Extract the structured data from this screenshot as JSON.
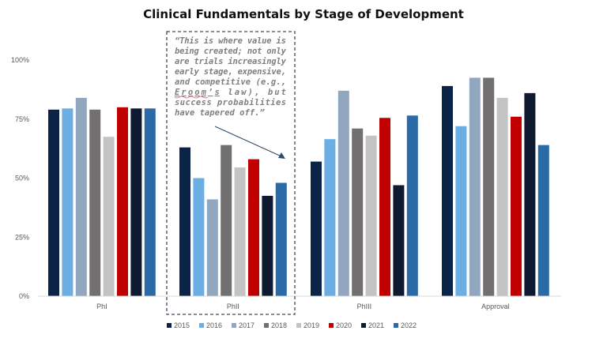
{
  "chart_data": {
    "type": "bar",
    "title": "Clinical Fundamentals by Stage of Development",
    "categories": [
      "PhI",
      "PhII",
      "PhIII",
      "Approval"
    ],
    "y_ticks": [
      "0%",
      "25%",
      "50%",
      "75%",
      "100%"
    ],
    "ylim": [
      0,
      100
    ],
    "grid": false,
    "legend_position": "bottom",
    "series": [
      {
        "name": "2015",
        "color": "#0c2348",
        "values": [
          79,
          63,
          57,
          89
        ]
      },
      {
        "name": "2016",
        "color": "#6aaee4",
        "values": [
          79.5,
          50,
          66.5,
          72
        ]
      },
      {
        "name": "2017",
        "color": "#91a7bf",
        "values": [
          84,
          41,
          87,
          92.5
        ]
      },
      {
        "name": "2018",
        "color": "#716f70",
        "values": [
          79,
          64,
          71,
          92.5
        ]
      },
      {
        "name": "2019",
        "color": "#c3c3c3",
        "values": [
          67.5,
          54.5,
          68,
          84
        ]
      },
      {
        "name": "2020",
        "color": "#c00000",
        "values": [
          80,
          58,
          75.5,
          76
        ]
      },
      {
        "name": "2021",
        "color": "#0f1a30",
        "values": [
          79.5,
          42.5,
          47,
          86
        ]
      },
      {
        "name": "2022",
        "color": "#2a6aa6",
        "values": [
          79.5,
          48,
          76.5,
          64
        ]
      }
    ],
    "annotation": {
      "lines": [
        "“This is where value is",
        "being created; not only",
        "are trials increasingly",
        "early stage, expensive,",
        "and competitive (e.g.,",
        "Eroom’s law), but",
        "success probabilities",
        "have tapered off.”"
      ],
      "emphasis": "Eroom’s"
    }
  }
}
